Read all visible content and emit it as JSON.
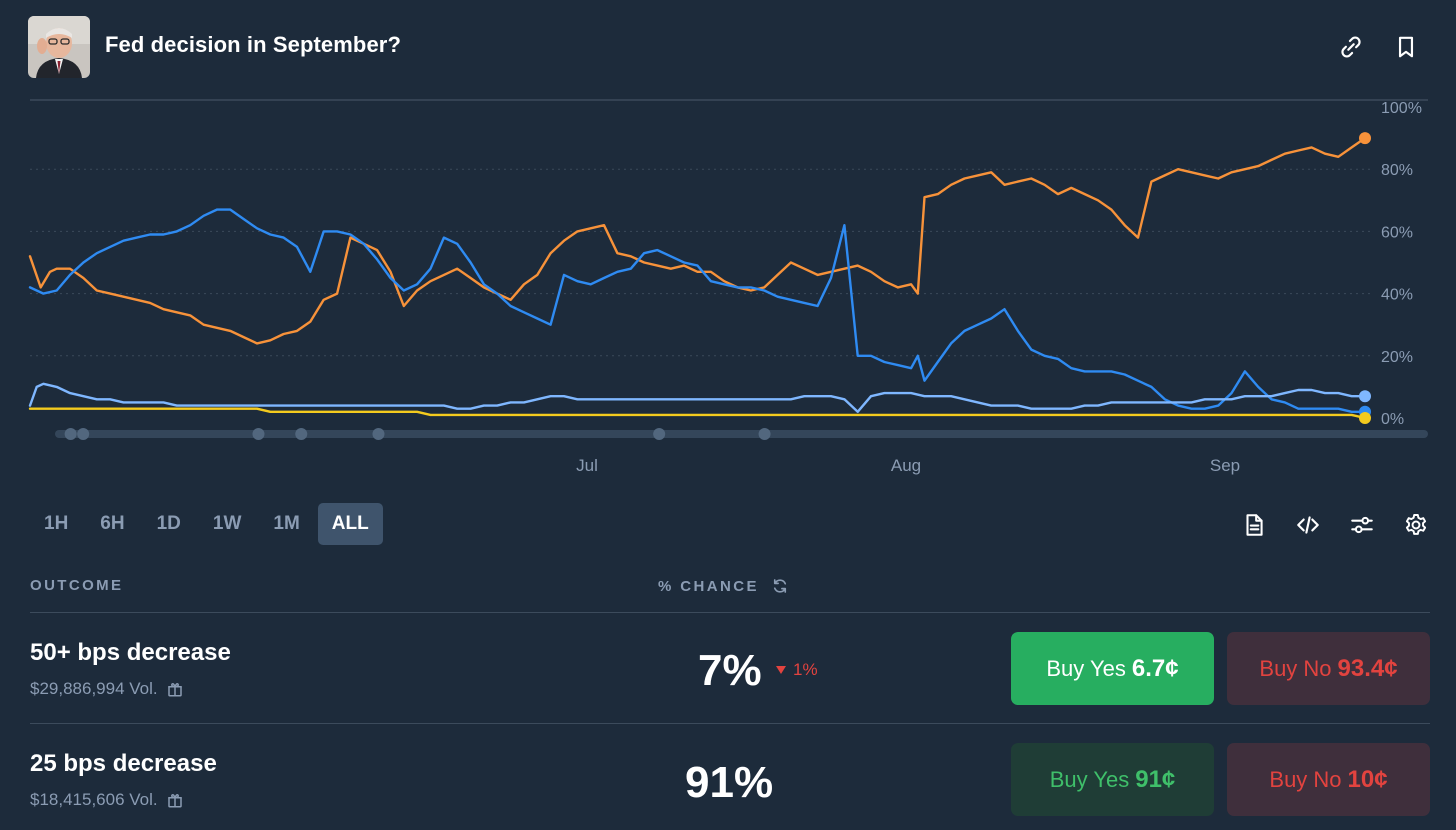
{
  "header": {
    "title": "Fed decision in September?"
  },
  "chart_data": {
    "type": "line",
    "y_ticks": [
      "100%",
      "80%",
      "60%",
      "40%",
      "20%",
      "0%"
    ],
    "ylim": [
      0,
      100
    ],
    "x_labels": [
      "Jul",
      "Aug",
      "Sep"
    ],
    "grid": true,
    "series": [
      {
        "color": "#f7923a",
        "x": [
          0,
          0.8,
          1.5,
          2,
          3,
          4,
          5,
          6,
          7,
          8,
          9,
          10,
          11,
          12,
          13,
          14,
          15,
          16,
          17,
          18,
          19,
          20,
          21,
          22,
          23,
          24,
          25,
          26,
          27,
          28,
          29,
          30,
          31,
          32,
          33,
          34,
          35,
          36,
          37,
          38,
          39,
          40,
          41,
          42,
          43,
          44,
          45,
          46,
          47,
          48,
          49,
          50,
          51,
          52,
          53,
          54,
          55,
          56,
          57,
          58,
          59,
          60,
          61,
          62,
          63,
          64,
          65,
          66,
          66.5,
          67,
          68,
          69,
          70,
          71,
          72,
          73,
          74,
          75,
          76,
          77,
          78,
          79,
          80,
          81,
          82,
          83,
          84,
          85,
          86,
          87,
          88,
          89,
          90,
          91,
          92,
          93,
          94,
          95,
          96,
          97,
          98,
          99,
          100
        ],
        "values": [
          52,
          42,
          47,
          48,
          48,
          45,
          41,
          40,
          39,
          38,
          37,
          35,
          34,
          33,
          30,
          29,
          28,
          26,
          24,
          25,
          27,
          28,
          31,
          38,
          40,
          58,
          56,
          54,
          47,
          36,
          41,
          44,
          46,
          48,
          45,
          42,
          40,
          38,
          43,
          46,
          53,
          57,
          60,
          61,
          62,
          53,
          52,
          50,
          49,
          48,
          49,
          47,
          47,
          44,
          42,
          41,
          42,
          46,
          50,
          48,
          46,
          47,
          48,
          49,
          47,
          44,
          42,
          43,
          40,
          71,
          72,
          75,
          77,
          78,
          79,
          75,
          76,
          77,
          75,
          72,
          74,
          72,
          70,
          67,
          62,
          58,
          76,
          78,
          80,
          79,
          78,
          77,
          79,
          80,
          81,
          83,
          85,
          86,
          87,
          85,
          84,
          87,
          90
        ]
      },
      {
        "color": "#2f8bf2",
        "x": [
          0,
          1,
          2,
          3,
          4,
          5,
          6,
          7,
          8,
          9,
          10,
          11,
          12,
          13,
          14,
          15,
          16,
          17,
          18,
          19,
          20,
          21,
          22,
          23,
          24,
          25,
          26,
          27,
          28,
          29,
          30,
          31,
          32,
          33,
          34,
          35,
          36,
          37,
          38,
          39,
          40,
          41,
          42,
          43,
          44,
          45,
          46,
          47,
          48,
          49,
          50,
          51,
          52,
          53,
          54,
          55,
          56,
          57,
          58,
          59,
          60,
          61,
          62,
          63,
          64,
          65,
          66,
          66.5,
          67,
          68,
          69,
          70,
          71,
          72,
          73,
          74,
          75,
          76,
          77,
          78,
          79,
          80,
          81,
          82,
          83,
          84,
          85,
          86,
          87,
          88,
          89,
          90,
          91,
          92,
          93,
          94,
          95,
          96,
          97,
          98,
          99,
          100
        ],
        "values": [
          42,
          40,
          41,
          46,
          50,
          53,
          55,
          57,
          58,
          59,
          59,
          60,
          62,
          65,
          67,
          67,
          64,
          61,
          59,
          58,
          55,
          47,
          60,
          60,
          59,
          56,
          51,
          45,
          41,
          43,
          48,
          58,
          56,
          50,
          43,
          40,
          36,
          34,
          32,
          30,
          46,
          44,
          43,
          45,
          47,
          48,
          53,
          54,
          52,
          50,
          49,
          44,
          43,
          42,
          42,
          41,
          39,
          38,
          37,
          36,
          45,
          62,
          20,
          20,
          18,
          17,
          16,
          20,
          12,
          18,
          24,
          28,
          30,
          32,
          35,
          28,
          22,
          20,
          19,
          16,
          15,
          15,
          15,
          14,
          12,
          10,
          6,
          4,
          3,
          3,
          4,
          8,
          15,
          10,
          6,
          5,
          3,
          3,
          3,
          3,
          2,
          2
        ]
      },
      {
        "color": "#7fb7ff",
        "x": [
          0,
          0.5,
          1,
          2,
          3,
          4,
          5,
          6,
          7,
          8,
          9,
          10,
          11,
          12,
          13,
          14,
          15,
          16,
          17,
          18,
          19,
          20,
          21,
          22,
          23,
          24,
          25,
          26,
          27,
          28,
          29,
          30,
          31,
          32,
          33,
          34,
          35,
          36,
          37,
          38,
          39,
          40,
          41,
          42,
          43,
          44,
          45,
          46,
          47,
          48,
          49,
          50,
          51,
          52,
          53,
          54,
          55,
          56,
          57,
          58,
          59,
          60,
          61,
          62,
          63,
          64,
          65,
          66,
          67,
          68,
          69,
          70,
          71,
          72,
          73,
          74,
          75,
          76,
          77,
          78,
          79,
          80,
          81,
          82,
          83,
          84,
          85,
          86,
          87,
          88,
          89,
          90,
          91,
          92,
          93,
          94,
          95,
          96,
          97,
          98,
          99,
          100
        ],
        "values": [
          4,
          10,
          11,
          10,
          8,
          7,
          6,
          6,
          5,
          5,
          5,
          5,
          4,
          4,
          4,
          4,
          4,
          4,
          4,
          4,
          4,
          4,
          4,
          4,
          4,
          4,
          4,
          4,
          4,
          4,
          4,
          4,
          4,
          3,
          3,
          4,
          4,
          5,
          5,
          6,
          7,
          7,
          6,
          6,
          6,
          6,
          6,
          6,
          6,
          6,
          6,
          6,
          6,
          6,
          6,
          6,
          6,
          6,
          6,
          7,
          7,
          7,
          6,
          2,
          7,
          8,
          8,
          8,
          7,
          7,
          7,
          6,
          5,
          4,
          4,
          4,
          3,
          3,
          3,
          3,
          4,
          4,
          5,
          5,
          5,
          5,
          5,
          5,
          5,
          6,
          6,
          6,
          7,
          7,
          7,
          8,
          9,
          9,
          8,
          8,
          7,
          7
        ]
      },
      {
        "color": "#f4cb1e",
        "x": [
          0,
          1,
          2,
          3,
          4,
          5,
          6,
          7,
          8,
          9,
          10,
          11,
          12,
          13,
          14,
          15,
          16,
          17,
          18,
          19,
          20,
          21,
          22,
          23,
          24,
          25,
          26,
          27,
          28,
          29,
          30,
          31,
          32,
          33,
          34,
          35,
          36,
          37,
          38,
          39,
          40,
          41,
          42,
          43,
          44,
          45,
          46,
          47,
          48,
          49,
          50,
          51,
          52,
          53,
          54,
          55,
          56,
          57,
          58,
          59,
          60,
          61,
          62,
          63,
          64,
          65,
          66,
          67,
          68,
          69,
          70,
          71,
          72,
          73,
          74,
          75,
          76,
          77,
          78,
          79,
          80,
          81,
          82,
          83,
          84,
          85,
          86,
          87,
          88,
          89,
          90,
          91,
          92,
          93,
          94,
          95,
          96,
          97,
          98,
          99,
          100
        ],
        "values": [
          3,
          3,
          3,
          3,
          3,
          3,
          3,
          3,
          3,
          3,
          3,
          3,
          3,
          3,
          3,
          3,
          3,
          3,
          2,
          2,
          2,
          2,
          2,
          2,
          2,
          2,
          2,
          2,
          2,
          2,
          1,
          1,
          1,
          1,
          1,
          1,
          1,
          1,
          1,
          1,
          1,
          1,
          1,
          1,
          1,
          1,
          1,
          1,
          1,
          1,
          1,
          1,
          1,
          1,
          1,
          1,
          1,
          1,
          1,
          1,
          1,
          1,
          1,
          1,
          1,
          1,
          1,
          1,
          1,
          1,
          1,
          1,
          1,
          1,
          1,
          1,
          1,
          1,
          1,
          1,
          1,
          1,
          1,
          1,
          1,
          1,
          1,
          1,
          1,
          1,
          1,
          1,
          1,
          1,
          1,
          1,
          1,
          1,
          1,
          1,
          0
        ]
      }
    ]
  },
  "ranges": {
    "items": [
      "1H",
      "6H",
      "1D",
      "1W",
      "1M",
      "ALL"
    ],
    "active": "ALL"
  },
  "table": {
    "col_outcome": "OUTCOME",
    "col_chance": "% CHANCE"
  },
  "outcomes": [
    {
      "name": "50+ bps decrease",
      "volume": "$29,886,994 Vol.",
      "chance": "7%",
      "delta": "1%",
      "yes_label": "Buy Yes",
      "yes_price": "6.7¢",
      "no_label": "Buy No",
      "no_price": "93.4¢"
    },
    {
      "name": "25 bps decrease",
      "volume": "$18,415,606 Vol.",
      "chance": "91%",
      "yes_label": "Buy Yes",
      "yes_price": "91¢",
      "no_label": "Buy No",
      "no_price": "10¢"
    }
  ],
  "colors": {
    "background": "#1d2b3b",
    "accent_yes": "#27ae60",
    "accent_no": "#e2433f",
    "muted_text": "#8b9cb3"
  },
  "icons": {
    "header": [
      "link-icon",
      "bookmark-icon"
    ],
    "tools": [
      "document-icon",
      "code-icon",
      "sliders-icon",
      "gear-icon"
    ]
  }
}
